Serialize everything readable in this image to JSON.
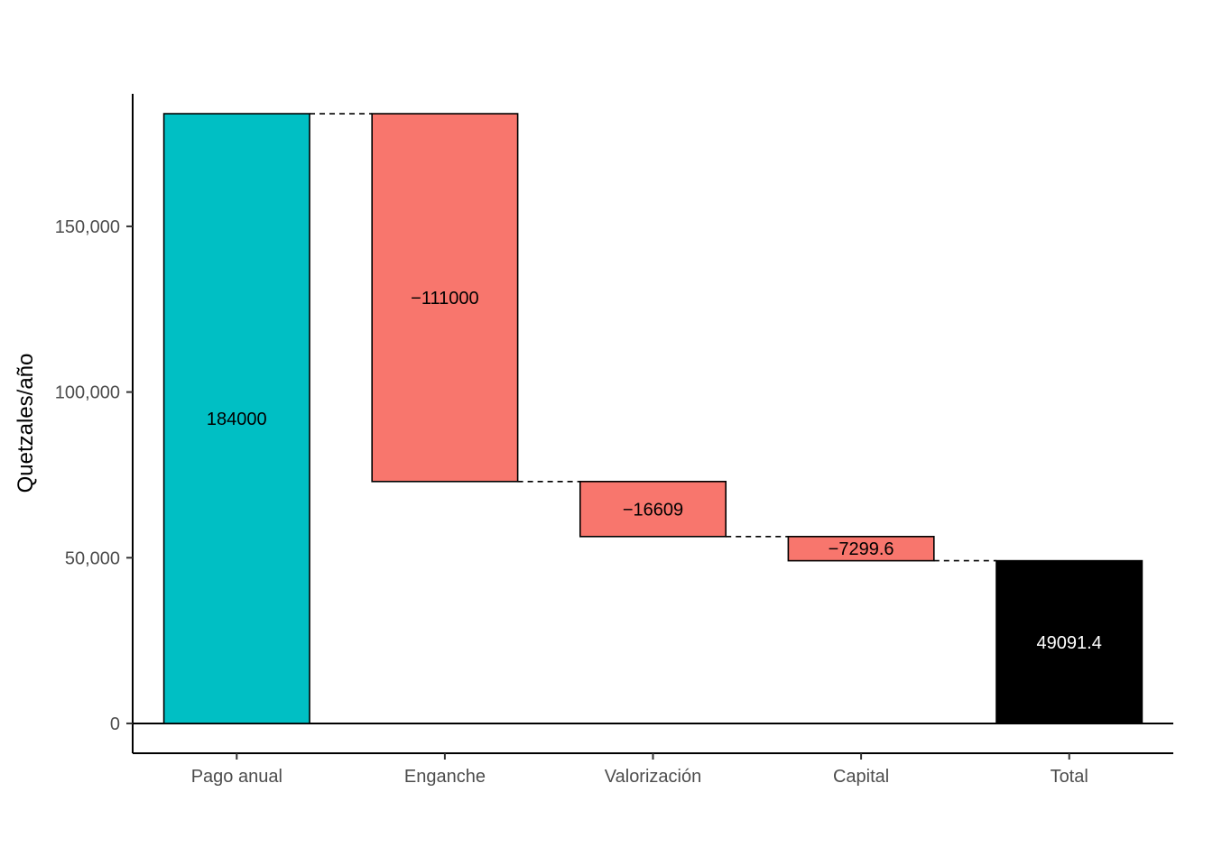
{
  "chart_data": {
    "type": "bar",
    "subtype": "waterfall",
    "ylabel": "Quetzales/año",
    "xlabel": "",
    "ylim": [
      -9000,
      190000
    ],
    "y_ticks": [
      0,
      50000,
      100000,
      150000
    ],
    "y_tick_labels": [
      "0",
      "50,000",
      "100,000",
      "150,000"
    ],
    "categories": [
      "Pago anual",
      "Enganche",
      "Valorización",
      "Capital",
      "Total"
    ],
    "values": [
      184000,
      -111000,
      -16609,
      -7299.6,
      49091.4
    ],
    "value_labels": [
      "184000",
      "−111000",
      "−16609",
      "−7299.6",
      "49091.4"
    ],
    "bar_kinds": [
      "start",
      "step",
      "step",
      "step",
      "total"
    ],
    "colors": {
      "start": "#00BFC4",
      "step": "#F8766D",
      "total": "#000000",
      "label_dark": "#000000",
      "label_light": "#ffffff",
      "axis": "#000000",
      "tick_text": "#4d4d4d"
    },
    "grid": false,
    "legend": "none",
    "connectors": "dashed",
    "zero_line": true
  }
}
